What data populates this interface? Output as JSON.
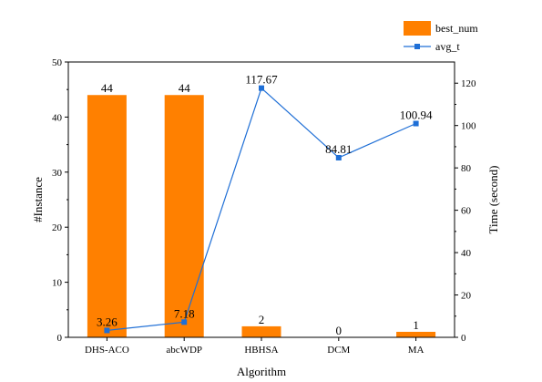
{
  "chart_data": {
    "type": "bar",
    "categories": [
      "DHS-ACO",
      "abcWDP",
      "HBHSA",
      "DCM",
      "MA"
    ],
    "series": [
      {
        "name": "best_num",
        "type": "bar",
        "axis": "left",
        "values": [
          44,
          44,
          2,
          0,
          1
        ],
        "labels": [
          "44",
          "44",
          "2",
          "0",
          "1"
        ]
      },
      {
        "name": "avg_t",
        "type": "line",
        "axis": "right",
        "values": [
          3.26,
          7.18,
          117.67,
          84.81,
          100.94
        ],
        "labels": [
          "3.26",
          "7.18",
          "117.67",
          "84.81",
          "100.94"
        ]
      }
    ],
    "title": "",
    "xlabel": "Algorithm",
    "ylabel": "#Instance",
    "y2label": "Time (second)",
    "ylim": [
      0,
      50
    ],
    "y2lim": [
      0,
      130
    ],
    "yticks": [
      "0",
      "10",
      "20",
      "30",
      "40",
      "50"
    ],
    "y2ticks": [
      "0",
      "20",
      "40",
      "60",
      "80",
      "100",
      "120"
    ],
    "grid": false,
    "legend_position": "top-right",
    "colors": {
      "bar": "#ff8000",
      "line": "#1f6fd6"
    }
  }
}
